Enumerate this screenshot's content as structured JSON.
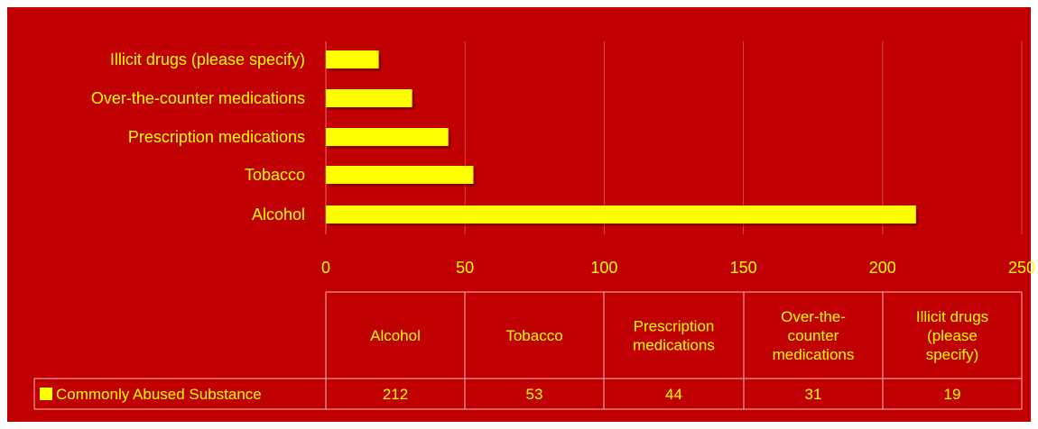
{
  "colors": {
    "background": "#C00000",
    "bar": "#FFFF00",
    "text": "#FFFF00",
    "grid": "#D94A4A",
    "table_border": "#F2B8B8"
  },
  "chart_data": {
    "type": "bar",
    "orientation": "horizontal",
    "title": "",
    "xlabel": "",
    "ylabel": "",
    "categories": [
      "Alcohol",
      "Tobacco",
      "Prescription medications",
      "Over-the-counter medications",
      "Illicit drugs (please specify)"
    ],
    "series": [
      {
        "name": "Commonly Abused Substance",
        "values": [
          212,
          53,
          44,
          31,
          19
        ]
      }
    ],
    "xlim": [
      0,
      250
    ],
    "xticks": [
      0,
      50,
      100,
      150,
      200,
      250
    ],
    "grid": true,
    "legend": "data-table-left",
    "data_table": {
      "headers": [
        [
          "Alcohol"
        ],
        [
          "Tobacco"
        ],
        [
          "Prescription",
          "medications"
        ],
        [
          "Over-the-",
          "counter",
          "medications"
        ],
        [
          "Illicit drugs",
          "(please",
          "specify)"
        ]
      ]
    }
  }
}
